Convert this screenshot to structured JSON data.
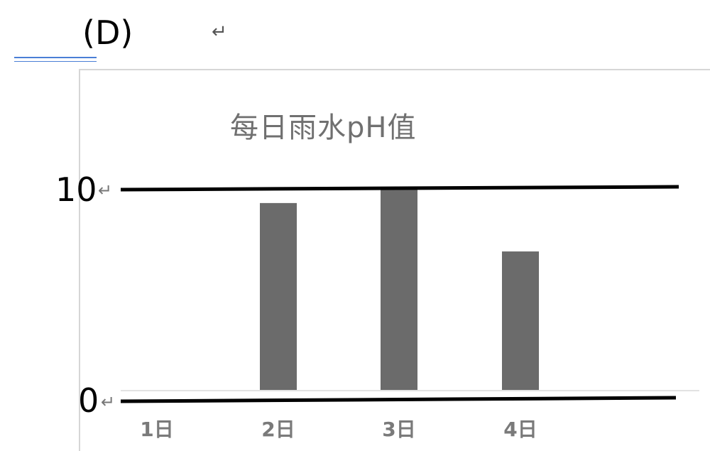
{
  "question": {
    "option_label": "(D)",
    "paragraph_mark": "↵"
  },
  "chart_data": {
    "type": "bar",
    "title": "每日雨水pH值",
    "categories": [
      "1日",
      "2日",
      "3日",
      "4日"
    ],
    "values": [
      0,
      9.3,
      10,
      6.9
    ],
    "ylim": [
      0,
      10
    ],
    "y_ticks": [
      "10",
      "0"
    ],
    "xlabel": "",
    "ylabel": "",
    "grid": false,
    "legend": "none",
    "bar_color": "#6b6b6b",
    "axis_color": "#000000",
    "tick_label_color": "#7a7a7a"
  }
}
